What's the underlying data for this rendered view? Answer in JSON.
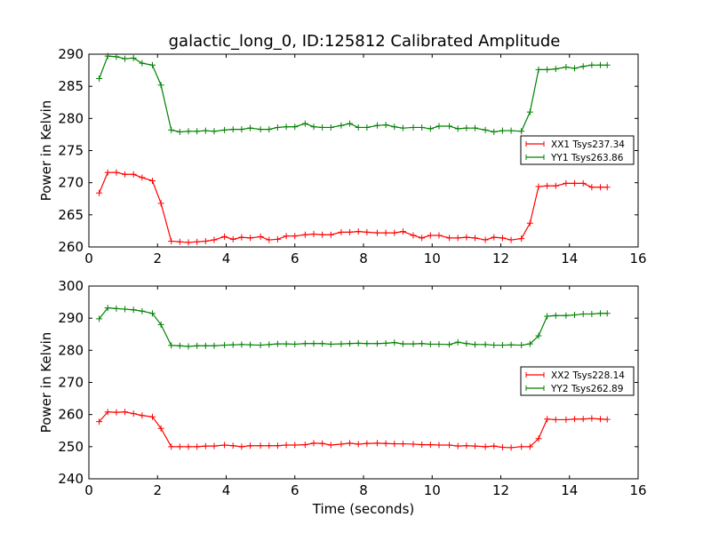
{
  "figure": {
    "title": "galactic_long_0, ID:125812 Calibrated Amplitude"
  },
  "chart_data": [
    {
      "type": "line",
      "title": "galactic_long_0, ID:125812 Calibrated Amplitude",
      "xlabel": "",
      "ylabel": "Power in Kelvin",
      "xlim": [
        0,
        16
      ],
      "ylim": [
        260,
        290
      ],
      "xticks": [
        0,
        2,
        4,
        6,
        8,
        10,
        12,
        14,
        16
      ],
      "yticks": [
        260,
        265,
        270,
        275,
        280,
        285,
        290
      ],
      "legend_position": "center-right",
      "x": [
        0.3,
        0.55,
        0.8,
        1.05,
        1.3,
        1.55,
        1.85,
        2.1,
        2.4,
        2.65,
        2.9,
        3.15,
        3.4,
        3.65,
        3.95,
        4.2,
        4.45,
        4.7,
        5.0,
        5.25,
        5.5,
        5.75,
        6.0,
        6.3,
        6.55,
        6.8,
        7.05,
        7.35,
        7.6,
        7.85,
        8.1,
        8.4,
        8.65,
        8.9,
        9.15,
        9.45,
        9.7,
        9.95,
        10.2,
        10.5,
        10.75,
        11.0,
        11.25,
        11.55,
        11.8,
        12.05,
        12.3,
        12.6,
        12.85,
        13.1,
        13.35,
        13.6,
        13.9,
        14.15,
        14.4,
        14.65,
        14.9,
        15.1
      ],
      "series": [
        {
          "name": "XX1 Tsys237.34",
          "color": "#ff0000",
          "values": [
            268.4,
            271.6,
            271.6,
            271.3,
            271.3,
            270.8,
            270.3,
            266.8,
            260.9,
            260.8,
            260.7,
            260.8,
            260.9,
            261.1,
            261.6,
            261.2,
            261.5,
            261.4,
            261.6,
            261.1,
            261.2,
            261.7,
            261.7,
            261.9,
            262.0,
            261.9,
            261.9,
            262.3,
            262.3,
            262.4,
            262.3,
            262.2,
            262.2,
            262.2,
            262.4,
            261.8,
            261.4,
            261.8,
            261.8,
            261.4,
            261.4,
            261.5,
            261.4,
            261.1,
            261.5,
            261.4,
            261.1,
            261.3,
            263.7,
            269.4,
            269.5,
            269.5,
            269.9,
            269.9,
            269.9,
            269.3,
            269.3,
            269.3
          ]
        },
        {
          "name": "YY1 Tsys263.86",
          "color": "#008000",
          "values": [
            286.2,
            289.7,
            289.6,
            289.3,
            289.4,
            288.6,
            288.3,
            285.2,
            278.2,
            277.9,
            278.0,
            278.0,
            278.1,
            278.0,
            278.2,
            278.3,
            278.3,
            278.5,
            278.3,
            278.3,
            278.6,
            278.7,
            278.7,
            279.2,
            278.7,
            278.6,
            278.6,
            278.9,
            279.2,
            278.6,
            278.6,
            278.9,
            279.0,
            278.7,
            278.5,
            278.6,
            278.6,
            278.4,
            278.8,
            278.8,
            278.4,
            278.5,
            278.5,
            278.2,
            277.9,
            278.1,
            278.1,
            278.0,
            281.0,
            287.6,
            287.6,
            287.7,
            288.0,
            287.8,
            288.1,
            288.3,
            288.3,
            288.3
          ]
        }
      ]
    },
    {
      "type": "line",
      "title": "",
      "xlabel": "Time (seconds)",
      "ylabel": "Power in Kelvin",
      "xlim": [
        0,
        16
      ],
      "ylim": [
        240,
        300
      ],
      "xticks": [
        0,
        2,
        4,
        6,
        8,
        10,
        12,
        14,
        16
      ],
      "yticks": [
        240,
        250,
        260,
        270,
        280,
        290,
        300
      ],
      "legend_position": "center-right",
      "x": [
        0.3,
        0.55,
        0.8,
        1.05,
        1.3,
        1.55,
        1.85,
        2.1,
        2.4,
        2.65,
        2.9,
        3.15,
        3.4,
        3.65,
        3.95,
        4.2,
        4.45,
        4.7,
        5.0,
        5.25,
        5.5,
        5.75,
        6.0,
        6.3,
        6.55,
        6.8,
        7.05,
        7.35,
        7.6,
        7.85,
        8.1,
        8.4,
        8.65,
        8.9,
        9.15,
        9.45,
        9.7,
        9.95,
        10.2,
        10.5,
        10.75,
        11.0,
        11.25,
        11.55,
        11.8,
        12.05,
        12.3,
        12.6,
        12.85,
        13.1,
        13.35,
        13.6,
        13.9,
        14.15,
        14.4,
        14.65,
        14.9,
        15.1
      ],
      "series": [
        {
          "name": "XX2 Tsys228.14",
          "color": "#ff0000",
          "values": [
            257.8,
            260.8,
            260.7,
            260.8,
            260.3,
            259.7,
            259.3,
            255.7,
            250.0,
            250.0,
            250.0,
            250.0,
            250.2,
            250.2,
            250.5,
            250.3,
            250.0,
            250.3,
            250.3,
            250.3,
            250.3,
            250.5,
            250.5,
            250.6,
            251.1,
            251.0,
            250.5,
            250.8,
            251.1,
            250.8,
            251.0,
            251.1,
            251.0,
            250.9,
            250.9,
            250.8,
            250.6,
            250.6,
            250.5,
            250.5,
            250.2,
            250.3,
            250.2,
            250.0,
            250.2,
            249.8,
            249.7,
            250.0,
            250.0,
            252.5,
            258.6,
            258.4,
            258.4,
            258.6,
            258.6,
            258.8,
            258.6,
            258.5
          ]
        },
        {
          "name": "YY2 Tsys262.89",
          "color": "#008000",
          "values": [
            289.8,
            293.2,
            293.0,
            292.8,
            292.6,
            292.2,
            291.5,
            288.0,
            281.5,
            281.4,
            281.2,
            281.4,
            281.4,
            281.4,
            281.6,
            281.7,
            281.8,
            281.7,
            281.6,
            281.8,
            282.0,
            282.0,
            281.9,
            282.1,
            282.1,
            282.1,
            281.9,
            282.0,
            282.1,
            282.2,
            282.1,
            282.1,
            282.2,
            282.4,
            282.0,
            282.0,
            282.1,
            281.9,
            281.9,
            281.8,
            282.5,
            282.1,
            281.8,
            281.8,
            281.6,
            281.6,
            281.7,
            281.6,
            282.0,
            284.5,
            290.6,
            290.8,
            290.8,
            291.0,
            291.3,
            291.3,
            291.5,
            291.5
          ]
        }
      ]
    }
  ]
}
